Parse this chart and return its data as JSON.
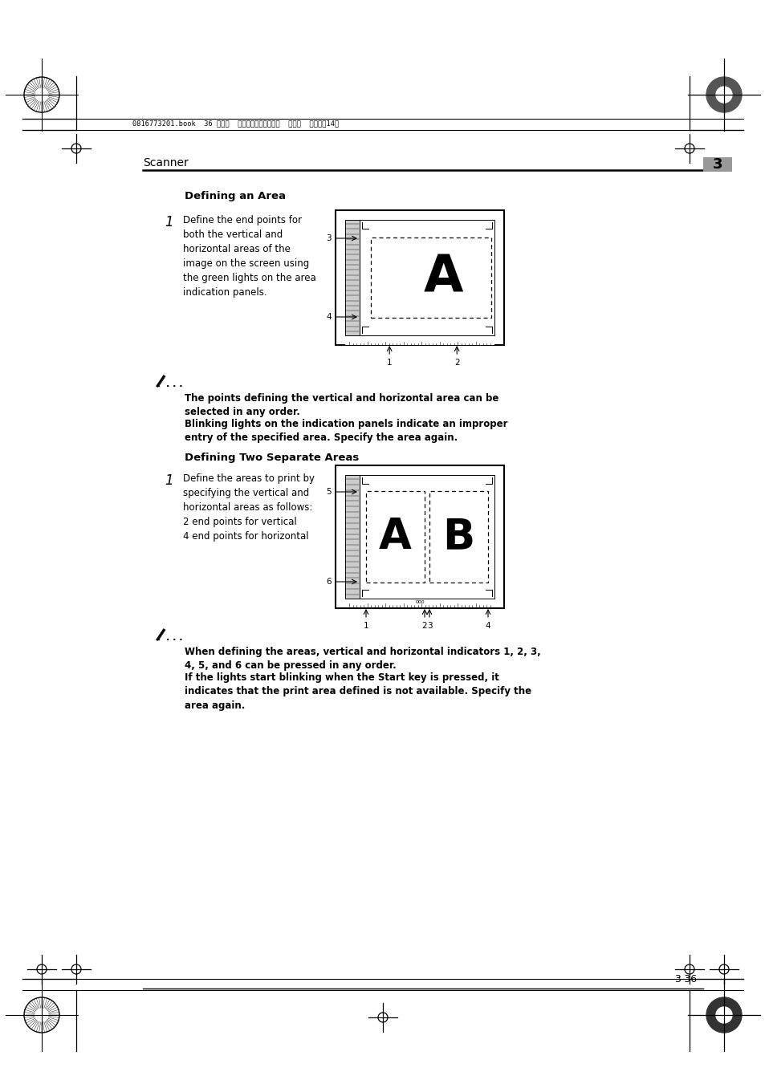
{
  "page_bg": "#ffffff",
  "header_text": "0816773201.book  36 ページ  ２００４年６月２４日  木曜日  午後６時14分",
  "section_label": "Scanner",
  "section_number": "3",
  "section_number_bg": "#999999",
  "title1": "Defining an Area",
  "step1_num": "1",
  "step1_text": "Define the end points for\nboth the vertical and\nhorizontal areas of the\nimage on the screen using\nthe green lights on the area\nindication panels.",
  "note1_text1": "The points defining the vertical and horizontal area can be\nselected in any order.",
  "note1_text2": "Blinking lights on the indication panels indicate an improper\nentry of the specified area. Specify the area again.",
  "title2": "Defining Two Separate Areas",
  "step2_num": "1",
  "step2_text": "Define the areas to print by\nspecifying the vertical and\nhorizontal areas as follows:\n2 end points for vertical\n4 end points for horizontal",
  "note2_text1": "When defining the areas, vertical and horizontal indicators 1, 2, 3,\n4, 5, and 6 can be pressed in any order.",
  "note2_text2": "If the lights start blinking when the Start key is pressed, it\nindicates that the print area defined is not available. Specify the\narea again.",
  "footer_page": "3-36"
}
